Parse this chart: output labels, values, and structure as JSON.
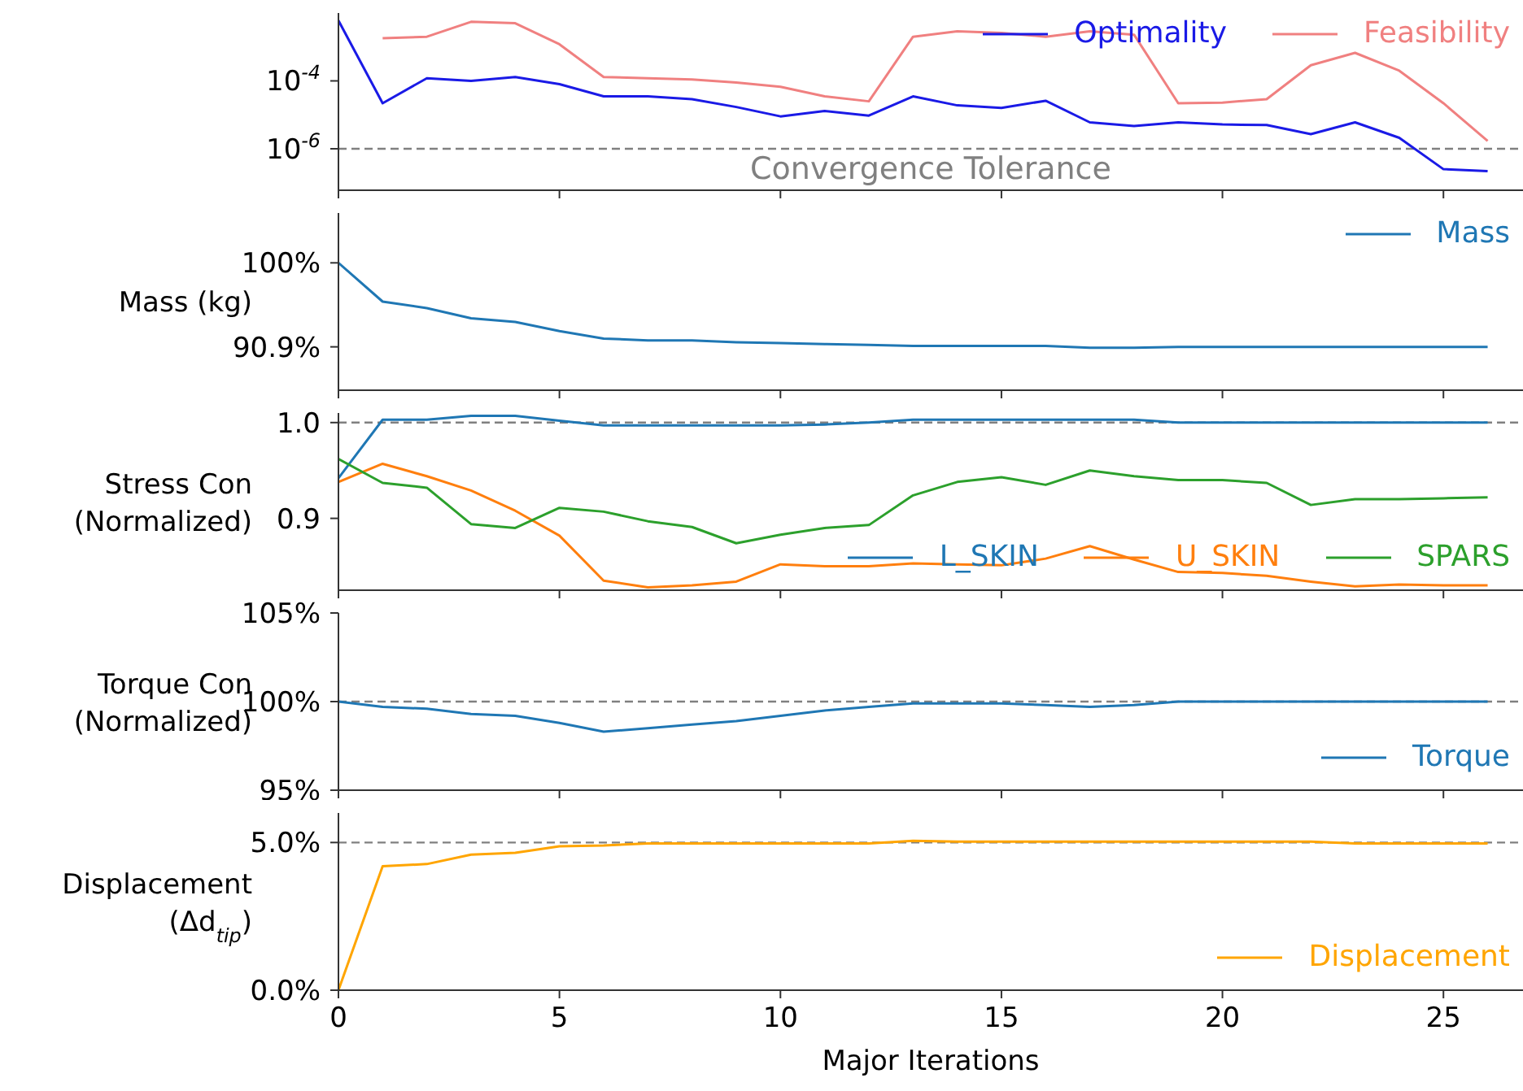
{
  "chart_data": [
    {
      "type": "line",
      "log": "y",
      "x": [
        0,
        1,
        2,
        3,
        4,
        5,
        6,
        7,
        8,
        9,
        10,
        11,
        12,
        13,
        14,
        15,
        16,
        17,
        18,
        19,
        20,
        21,
        22,
        23,
        24,
        25,
        26
      ],
      "xlim": [
        0,
        26.8
      ],
      "xticks": [
        0,
        5,
        10,
        15,
        20,
        25
      ],
      "ylim": [
        6e-08,
        0.01
      ],
      "yticks": [
        {
          "value": 0.0001,
          "label": "10$^{-4}$"
        },
        {
          "value": 1e-06,
          "label": "10$^{-6}$"
        }
      ],
      "tick_labels": "y",
      "legend": "top right",
      "series": [
        {
          "name": "Optimality",
          "color": "#1a1ae6",
          "values": [
            0.006,
            2.2e-05,
            0.00012,
            0.0001,
            0.00013,
            8e-05,
            3.5e-05,
            3.5e-05,
            2.9e-05,
            1.7e-05,
            9e-06,
            1.3e-05,
            9.5e-06,
            3.5e-05,
            1.9e-05,
            1.6e-05,
            2.6e-05,
            6e-06,
            4.7e-06,
            6e-06,
            5.2e-06,
            5e-06,
            2.7e-06,
            6e-06,
            2.1e-06,
            2.5e-07,
            2.2e-07
          ]
        },
        {
          "name": "Feasibility",
          "color": "#f08080",
          "values": [
            null,
            0.0018,
            0.002,
            0.0055,
            0.005,
            0.0012,
            0.00013,
            0.00012,
            0.00011,
            9e-05,
            6.7e-05,
            3.5e-05,
            2.5e-05,
            0.002,
            0.0029,
            0.0026,
            0.002,
            0.0029,
            0.0023,
            2.2e-05,
            2.3e-05,
            2.9e-05,
            0.00029,
            0.00067,
            0.0002,
            2.2e-05,
            1.7e-06
          ]
        }
      ],
      "ref_lines": [
        {
          "axis": "y",
          "value": 1e-06,
          "label": "Convergence Tolerance",
          "color": "#808080",
          "line_style": "dashed"
        }
      ]
    },
    {
      "type": "line",
      "ylabel": "Mass (kg)",
      "x": [
        0,
        1,
        2,
        3,
        4,
        5,
        6,
        7,
        8,
        9,
        10,
        11,
        12,
        13,
        14,
        15,
        16,
        17,
        18,
        19,
        20,
        21,
        22,
        23,
        24,
        25,
        26
      ],
      "xlim": [
        0,
        26.8
      ],
      "xticks": [
        0,
        5,
        10,
        15,
        20,
        25
      ],
      "ylim": [
        86.2,
        105.4
      ],
      "yticks": [
        {
          "value": 100,
          "label": "100%"
        },
        {
          "value": 90.9,
          "label": "90.9%"
        }
      ],
      "tick_labels": "y",
      "legend": "top right",
      "series": [
        {
          "name": "Mass",
          "color": "#1f77b4",
          "values": [
            100,
            95.8,
            95.1,
            94.0,
            93.6,
            92.6,
            91.8,
            91.6,
            91.6,
            91.4,
            91.3,
            91.2,
            91.1,
            91.0,
            91.0,
            91.0,
            91.0,
            90.8,
            90.8,
            90.9,
            90.9,
            90.9,
            90.9,
            90.9,
            90.9,
            90.9,
            90.9
          ]
        }
      ]
    },
    {
      "type": "line",
      "ylabel": "Stress Con\n(Normalized)",
      "x": [
        0,
        1,
        2,
        3,
        4,
        5,
        6,
        7,
        8,
        9,
        10,
        11,
        12,
        13,
        14,
        15,
        16,
        17,
        18,
        19,
        20,
        21,
        22,
        23,
        24,
        25,
        26
      ],
      "xlim": [
        0,
        26.8
      ],
      "xticks": [
        0,
        5,
        10,
        15,
        20,
        25
      ],
      "ylim": [
        0.825,
        1.01
      ],
      "yticks": [
        0.9,
        {
          "value": 1.0,
          "label": "1.0"
        }
      ],
      "tick_labels": "y",
      "legend": "bottom right",
      "series": [
        {
          "name": "L_SKIN",
          "color": "#1f77b4",
          "values": [
            0.942,
            1.003,
            1.003,
            1.007,
            1.007,
            1.002,
            0.997,
            0.997,
            0.997,
            0.997,
            0.997,
            0.998,
            1.0,
            1.003,
            1.003,
            1.003,
            1.003,
            1.003,
            1.003,
            1.0,
            1.0,
            1.0,
            1.0,
            1.0,
            1.0,
            1.0,
            1.0
          ]
        },
        {
          "name": "U_SKIN",
          "color": "#ff7f0e",
          "values": [
            0.938,
            0.957,
            0.944,
            0.929,
            0.908,
            0.882,
            0.835,
            0.828,
            0.83,
            0.834,
            0.852,
            0.85,
            0.85,
            0.853,
            0.852,
            0.851,
            0.858,
            0.871,
            0.857,
            0.844,
            0.843,
            0.84,
            0.834,
            0.829,
            0.831,
            0.83,
            0.83
          ]
        },
        {
          "name": "SPARS",
          "color": "#2ca02c",
          "values": [
            0.962,
            0.937,
            0.932,
            0.894,
            0.89,
            0.911,
            0.907,
            0.897,
            0.891,
            0.874,
            0.883,
            0.89,
            0.893,
            0.924,
            0.938,
            0.943,
            0.935,
            0.95,
            0.944,
            0.94,
            0.94,
            0.937,
            0.914,
            0.92,
            0.92,
            0.921,
            0.922
          ]
        }
      ],
      "ref_lines": [
        {
          "axis": "y",
          "value": 1.0,
          "color": "#808080",
          "line_style": "dashed"
        }
      ]
    },
    {
      "type": "line",
      "ylabel": "Torque Con\n(Normalized)",
      "x": [
        0,
        1,
        2,
        3,
        4,
        5,
        6,
        7,
        8,
        9,
        10,
        11,
        12,
        13,
        14,
        15,
        16,
        17,
        18,
        19,
        20,
        21,
        22,
        23,
        24,
        25,
        26
      ],
      "xlim": [
        0,
        26.8
      ],
      "xticks": [
        0,
        5,
        10,
        15,
        20,
        25
      ],
      "ylim": [
        95,
        105
      ],
      "yticks": [
        {
          "value": 105,
          "label": "105%"
        },
        {
          "value": 100,
          "label": "100%"
        },
        {
          "value": 95,
          "label": "95%"
        }
      ],
      "tick_labels": "y",
      "legend": "bottom right",
      "series": [
        {
          "name": "Torque",
          "color": "#1f77b4",
          "values": [
            100,
            99.7,
            99.6,
            99.3,
            99.2,
            98.8,
            98.3,
            98.5,
            98.7,
            98.9,
            99.2,
            99.5,
            99.7,
            99.9,
            99.9,
            99.9,
            99.8,
            99.7,
            99.8,
            100,
            100,
            100,
            100,
            100,
            100,
            100,
            100
          ]
        }
      ],
      "ref_lines": [
        {
          "axis": "y",
          "value": 100,
          "color": "#808080",
          "line_style": "dashed"
        }
      ]
    },
    {
      "type": "line",
      "ylabel": "Displacement\n(Δd$_{tip}$)",
      "xlabel": "Major Iterations",
      "x": [
        0,
        1,
        2,
        3,
        4,
        5,
        6,
        7,
        8,
        9,
        10,
        11,
        12,
        13,
        14,
        15,
        16,
        17,
        18,
        19,
        20,
        21,
        22,
        23,
        24,
        25,
        26
      ],
      "xlim": [
        0,
        26.8
      ],
      "xticks": [
        0,
        5,
        10,
        15,
        20,
        25
      ],
      "ylim": [
        0,
        6.0
      ],
      "yticks": [
        {
          "value": 0,
          "label": "0.0%"
        },
        {
          "value": 5,
          "label": "5.0%"
        }
      ],
      "legend": "bottom right",
      "series": [
        {
          "name": "Displacement",
          "color": "#ffa500",
          "values": [
            0,
            4.2,
            4.27,
            4.59,
            4.65,
            4.87,
            4.9,
            4.97,
            4.97,
            4.97,
            4.97,
            4.97,
            4.97,
            5.06,
            5.03,
            5.03,
            5.03,
            5.03,
            5.03,
            5.03,
            5.03,
            5.03,
            5.03,
            4.97,
            4.97,
            4.97,
            4.97
          ]
        }
      ],
      "ref_lines": [
        {
          "axis": "y",
          "value": 5,
          "color": "#808080",
          "line_style": "dashed"
        }
      ]
    }
  ]
}
